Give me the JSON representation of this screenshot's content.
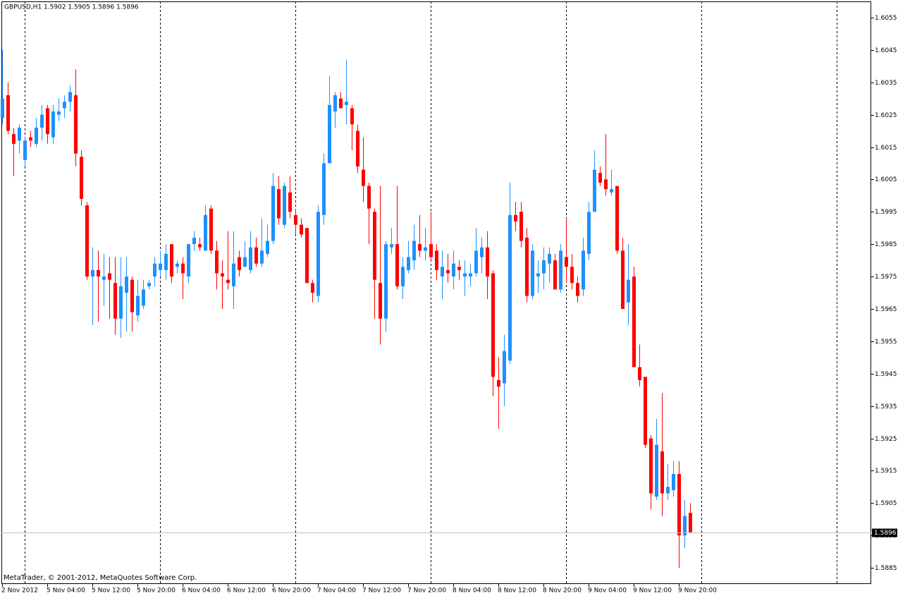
{
  "chart_data": {
    "type": "candlestick",
    "title": "GBPUSD,H1  1.5902 1.5905 1.5896 1.5896",
    "footer": "MetaTrader, © 2001-2012, MetaQuotes Software Corp.",
    "up_color": "#1e90ff",
    "down_color": "#ff0000",
    "current_price": 1.5896,
    "period_separators": true,
    "ylim": [
      1.588,
      1.606
    ],
    "yticks": [
      1.6055,
      1.6045,
      1.6035,
      1.6025,
      1.6015,
      1.6005,
      1.5995,
      1.5985,
      1.5975,
      1.5965,
      1.5955,
      1.5945,
      1.5935,
      1.5925,
      1.5915,
      1.5905,
      1.5895,
      1.5885
    ],
    "categories": [
      "2 Nov 2012",
      null,
      null,
      null,
      null,
      null,
      null,
      null,
      "5 Nov 04:00",
      null,
      null,
      null,
      null,
      null,
      null,
      null,
      "5 Nov 12:00",
      null,
      null,
      null,
      null,
      null,
      null,
      null,
      "5 Nov 20:00",
      null,
      null,
      null,
      null,
      null,
      null,
      null,
      "6 Nov 04:00",
      null,
      null,
      null,
      null,
      null,
      null,
      null,
      "6 Nov 12:00",
      null,
      null,
      null,
      null,
      null,
      null,
      null,
      "6 Nov 20:00",
      null,
      null,
      null,
      null,
      null,
      null,
      null,
      "7 Nov 04:00",
      null,
      null,
      null,
      null,
      null,
      null,
      null,
      "7 Nov 12:00",
      null,
      null,
      null,
      null,
      null,
      null,
      null,
      "7 Nov 20:00",
      null,
      null,
      null,
      null,
      null,
      null,
      null,
      "8 Nov 04:00",
      null,
      null,
      null,
      null,
      null,
      null,
      null,
      "8 Nov 12:00",
      null,
      null,
      null,
      null,
      null,
      null,
      null,
      "8 Nov 20:00",
      null,
      null,
      null,
      null,
      null,
      null,
      null,
      "9 Nov 04:00",
      null,
      null,
      null,
      null,
      null,
      null,
      null,
      "9 Nov 12:00",
      null,
      null,
      null,
      null,
      null,
      null,
      null,
      "9 Nov 20:00",
      null,
      null
    ],
    "open": [
      1.6024,
      1.6031,
      1.6019,
      1.6017,
      1.6011,
      1.6018,
      1.6016,
      1.6021,
      1.6027,
      1.6018,
      1.6025,
      1.6027,
      1.6029,
      1.6031,
      1.6012,
      1.5997,
      1.5975,
      1.5977,
      1.5974,
      1.5976,
      1.5973,
      1.5962,
      1.597,
      1.5974,
      1.5963,
      1.5966,
      1.5972,
      1.5975,
      1.5977,
      1.5977,
      1.5985,
      1.5978,
      1.5979,
      1.5975,
      1.5985,
      1.5985,
      1.5983,
      1.5996,
      1.5983,
      1.5976,
      1.5974,
      1.5972,
      1.5981,
      1.5978,
      1.5977,
      1.5984,
      1.5979,
      1.5982,
      1.5986,
      1.6002,
      1.5991,
      1.6001,
      1.5994,
      1.5991,
      1.599,
      1.5973,
      1.5969,
      1.5994,
      1.601,
      1.6026,
      1.603,
      1.6028,
      1.6027,
      1.602,
      1.6008,
      1.6003,
      1.5995,
      1.5973,
      1.5962,
      1.5984,
      1.5985,
      1.5972,
      1.5977,
      1.598,
      1.5985,
      1.5983,
      1.5985,
      1.5983,
      1.5975,
      1.5977,
      1.5975,
      1.5978,
      1.5975,
      1.5975,
      1.5976,
      1.5981,
      1.5984,
      1.5976,
      1.5943,
      1.5942,
      1.5949,
      1.5994,
      1.5995,
      1.5987,
      1.5969,
      1.5975,
      1.5976,
      1.5979,
      1.598,
      1.5971,
      1.5981,
      1.5978,
      1.5973,
      1.5971,
      1.5982,
      1.5995,
      1.6007,
      1.6005,
      1.6001,
      1.6003,
      1.5983,
      1.5967,
      1.5975,
      1.5947,
      1.5944,
      1.5925,
      1.5907,
      1.5921,
      1.5908,
      1.5909,
      1.5914,
      1.5895,
      1.5902
    ],
    "high": [
      1.6045,
      1.6035,
      1.6021,
      1.6022,
      1.6018,
      1.602,
      1.6024,
      1.6028,
      1.6028,
      1.6028,
      1.603,
      1.6031,
      1.6034,
      1.6039,
      1.6014,
      1.5998,
      1.5984,
      1.5983,
      1.5982,
      1.5981,
      1.5981,
      1.5981,
      1.5981,
      1.5975,
      1.5974,
      1.5974,
      1.5974,
      1.5981,
      1.5983,
      1.5985,
      1.5985,
      1.598,
      1.5981,
      1.5985,
      1.5989,
      1.5987,
      1.5997,
      1.5997,
      1.5986,
      1.598,
      1.5989,
      1.5989,
      1.5983,
      1.5986,
      1.5989,
      1.5987,
      1.5993,
      1.5991,
      1.6007,
      1.6006,
      1.6004,
      1.6006,
      1.5996,
      1.5993,
      1.599,
      1.5974,
      1.5997,
      1.6013,
      1.6037,
      1.6032,
      1.6032,
      1.6042,
      1.6028,
      1.6022,
      1.6018,
      1.6004,
      1.5996,
      1.6003,
      1.5986,
      1.599,
      1.6003,
      1.5981,
      1.5986,
      1.5991,
      1.5994,
      1.599,
      1.5995,
      1.5985,
      1.5983,
      1.5982,
      1.5983,
      1.598,
      1.598,
      1.5979,
      1.599,
      1.5987,
      1.5989,
      1.5977,
      1.595,
      1.5957,
      1.6004,
      1.5998,
      1.5998,
      1.599,
      1.5985,
      1.598,
      1.5984,
      1.5984,
      1.5982,
      1.5985,
      1.5993,
      1.5982,
      1.5975,
      1.5987,
      1.5998,
      1.6014,
      1.6009,
      1.6019,
      1.6008,
      1.6003,
      1.5987,
      1.5985,
      1.5978,
      1.5954,
      1.5944,
      1.5926,
      1.5931,
      1.5939,
      1.5917,
      1.5918,
      1.5918,
      1.5906,
      1.5905
    ],
    "low": [
      1.6022,
      1.6019,
      1.6006,
      1.6013,
      1.6009,
      1.6015,
      1.6015,
      1.6017,
      1.6016,
      1.6016,
      1.6023,
      1.6024,
      1.6026,
      1.6009,
      1.5997,
      1.5974,
      1.596,
      1.5961,
      1.5966,
      1.5962,
      1.5957,
      1.5956,
      1.5958,
      1.5958,
      1.5961,
      1.5965,
      1.5971,
      1.5972,
      1.5975,
      1.5974,
      1.5973,
      1.5976,
      1.5968,
      1.5973,
      1.5983,
      1.5983,
      1.5983,
      1.5982,
      1.5971,
      1.5965,
      1.5971,
      1.5965,
      1.5975,
      1.5978,
      1.5976,
      1.5978,
      1.5978,
      1.5981,
      1.5985,
      1.5991,
      1.599,
      1.5993,
      1.5988,
      1.5987,
      1.5973,
      1.5967,
      1.5967,
      1.5991,
      1.601,
      1.6021,
      1.6027,
      1.6022,
      1.6014,
      1.6007,
      1.5998,
      1.5985,
      1.5962,
      1.5954,
      1.5958,
      1.5982,
      1.5971,
      1.5968,
      1.5976,
      1.5977,
      1.5981,
      1.598,
      1.598,
      1.5974,
      1.5968,
      1.5973,
      1.5971,
      1.5974,
      1.5969,
      1.5972,
      1.5975,
      1.5976,
      1.5968,
      1.5938,
      1.5928,
      1.5935,
      1.5948,
      1.5989,
      1.5984,
      1.5967,
      1.5968,
      1.597,
      1.5971,
      1.5973,
      1.5971,
      1.597,
      1.5973,
      1.5971,
      1.5967,
      1.5969,
      1.598,
      1.5995,
      1.6003,
      1.6,
      1.6,
      1.5982,
      1.5965,
      1.596,
      1.5947,
      1.5941,
      1.5922,
      1.5903,
      1.5906,
      1.5901,
      1.5906,
      1.5907,
      1.5885,
      1.5891,
      1.5896
    ],
    "close": [
      1.603,
      1.602,
      1.6016,
      1.6021,
      1.6017,
      1.6017,
      1.6021,
      1.6025,
      1.6019,
      1.6026,
      1.6026,
      1.6029,
      1.6032,
      1.6013,
      1.5999,
      1.5975,
      1.5977,
      1.5975,
      1.5975,
      1.5974,
      1.5962,
      1.5972,
      1.5975,
      1.5964,
      1.5969,
      1.5971,
      1.5973,
      1.5979,
      1.5979,
      1.5982,
      1.5975,
      1.5979,
      1.5976,
      1.5985,
      1.5987,
      1.5984,
      1.5994,
      1.5983,
      1.5976,
      1.5975,
      1.5973,
      1.5979,
      1.5977,
      1.5981,
      1.5984,
      1.5979,
      1.5983,
      1.5986,
      1.6003,
      1.5993,
      1.6003,
      1.5995,
      1.5991,
      1.5988,
      1.5973,
      1.597,
      1.5995,
      1.601,
      1.6028,
      1.6031,
      1.6027,
      1.6029,
      1.6022,
      1.6009,
      1.6003,
      1.5996,
      1.5974,
      1.5962,
      1.5985,
      1.5985,
      1.5972,
      1.5978,
      1.5981,
      1.5986,
      1.5983,
      1.5984,
      1.5981,
      1.5977,
      1.5978,
      1.5976,
      1.5979,
      1.5977,
      1.5976,
      1.5976,
      1.5983,
      1.5984,
      1.5975,
      1.5944,
      1.5941,
      1.5952,
      1.5994,
      1.5992,
      1.5986,
      1.5969,
      1.5983,
      1.5976,
      1.598,
      1.5982,
      1.5971,
      1.5983,
      1.5978,
      1.5973,
      1.5969,
      1.5983,
      1.5995,
      1.6008,
      1.6004,
      1.6002,
      1.6002,
      1.5983,
      1.5965,
      1.5974,
      1.5947,
      1.5943,
      1.5923,
      1.5908,
      1.5923,
      1.5908,
      1.591,
      1.5914,
      1.5895,
      1.5901,
      1.5896
    ]
  }
}
